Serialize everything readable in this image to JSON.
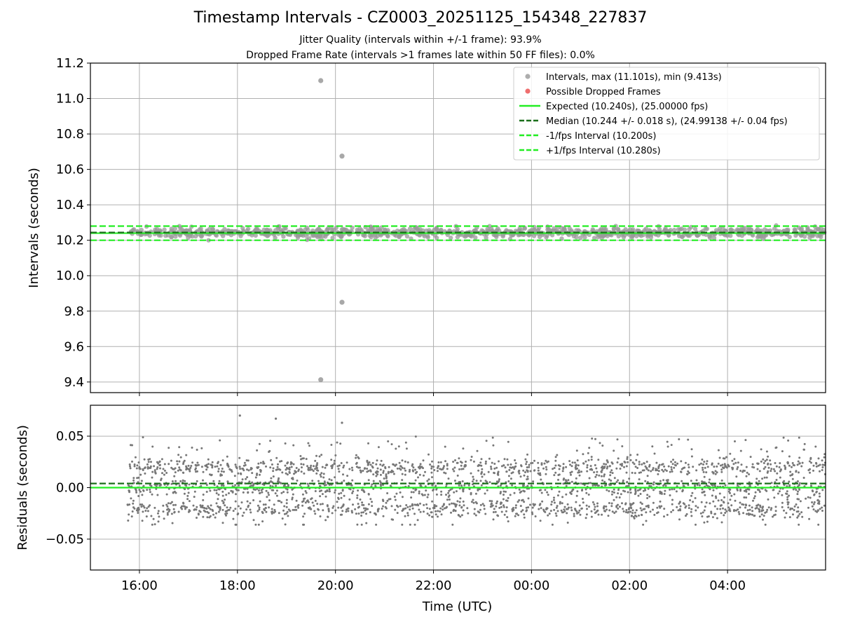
{
  "chart_data": [
    {
      "type": "scatter",
      "panel": "top",
      "title": "Timestamp Intervals - CZ0003_20251125_154348_227837",
      "subtitle_1": "Jitter Quality (intervals within +/-1 frame): 93.9%",
      "subtitle_2": "Dropped Frame Rate (intervals >1 frames late within 50 FF files): 0.0%",
      "xlabel": "",
      "ylabel": "Intervals (seconds)",
      "xlim": [
        "15:00",
        "06:00"
      ],
      "ylim": [
        9.34,
        11.2
      ],
      "yticks": [
        "9.4",
        "9.6",
        "9.8",
        "10.0",
        "10.2",
        "10.4",
        "10.6",
        "10.8",
        "11.0",
        "11.2"
      ],
      "grid": true,
      "legend_position": "top-right",
      "legend": [
        "Intervals, max (11.101s), min (9.413s)",
        "Possible Dropped Frames",
        "Expected (10.240s), (25.00000 fps)",
        "Median (10.244 +/- 0.018 s), (24.99138 +/- 0.04 fps)",
        "-1/fps Interval (10.200s)",
        "+1/fps Interval (10.280s)"
      ],
      "series": [
        {
          "name": "Intervals, max (11.101s), min (9.413s)",
          "color": "#999999",
          "bulk_range": [
            10.2,
            10.31
          ],
          "x_range": [
            "15:45",
            "06:00"
          ],
          "outliers": [
            {
              "x": "19:42",
              "y": 11.101
            },
            {
              "x": "20:08",
              "y": 10.675
            },
            {
              "x": "20:08",
              "y": 9.85
            },
            {
              "x": "19:42",
              "y": 9.413
            }
          ]
        },
        {
          "name": "Possible Dropped Frames",
          "color": "#e83030",
          "points": []
        }
      ],
      "hlines": [
        {
          "name": "Expected",
          "y": 10.24,
          "color": "#22ee22",
          "style": "solid"
        },
        {
          "name": "Median",
          "y": 10.244,
          "color": "#1a6e1a",
          "style": "dashed"
        },
        {
          "name": "-1/fps Interval",
          "y": 10.2,
          "color": "#22ee22",
          "style": "dashed"
        },
        {
          "name": "+1/fps Interval",
          "y": 10.28,
          "color": "#22ee22",
          "style": "dashed"
        }
      ]
    },
    {
      "type": "scatter",
      "panel": "bottom",
      "xlabel": "Time (UTC)",
      "ylabel": "Residuals (seconds)",
      "xlim": [
        "15:00",
        "06:00"
      ],
      "xticks": [
        "16:00",
        "18:00",
        "20:00",
        "22:00",
        "00:00",
        "02:00",
        "04:00"
      ],
      "ylim": [
        -0.08,
        0.08
      ],
      "yticks": [
        "−0.05",
        "0.00",
        "0.05"
      ],
      "grid": true,
      "series": [
        {
          "name": "Residuals",
          "color": "#777777",
          "bands": [
            0.02,
            0.0,
            -0.02
          ],
          "range": [
            -0.036,
            0.07
          ],
          "x_range": [
            "15:45",
            "06:00"
          ]
        }
      ],
      "hlines": [
        {
          "name": "Median residual",
          "y": 0.004,
          "color": "#1a6e1a",
          "style": "dashed"
        },
        {
          "name": "Zero",
          "y": 0.0,
          "color": "#22ee22",
          "style": "solid"
        }
      ]
    }
  ]
}
